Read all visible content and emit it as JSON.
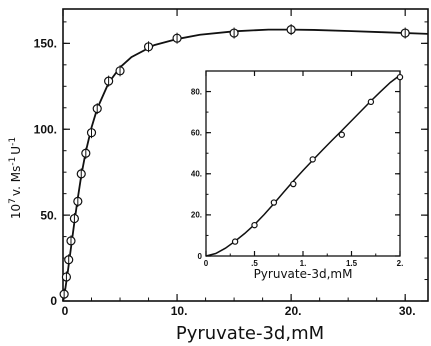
{
  "chart_data": [
    {
      "type": "scatter",
      "role": "main",
      "xlabel": "Pyruvate-3d,mM",
      "ylabel": "10⁷ v. Mₑ s⁻¹ U⁻¹",
      "ylabel_parts": {
        "exp": "7",
        "base": "10",
        "text": "v. Ms",
        "sup1": "-1",
        "tail": "U",
        "sup2": "-1"
      },
      "xlim": [
        0,
        32
      ],
      "ylim": [
        0,
        170
      ],
      "x_ticks": [
        0,
        10,
        20,
        30
      ],
      "x_tick_labels": [
        "0",
        "10.",
        "20.",
        "30."
      ],
      "y_ticks": [
        0,
        50,
        100,
        150
      ],
      "y_tick_labels": [
        "0",
        "50.",
        "100.",
        "150."
      ],
      "grid": false,
      "series": [
        {
          "marker": "open-circle",
          "x": [
            0.1,
            0.3,
            0.5,
            0.7,
            1.0,
            1.3,
            1.6,
            2.0,
            2.5,
            3.0,
            4.0,
            5.0,
            7.5,
            10.0,
            15.0,
            20.0,
            30.0
          ],
          "y": [
            4,
            14,
            24,
            35,
            48,
            58,
            74,
            86,
            98,
            112,
            128,
            134,
            148,
            153,
            156,
            158,
            156
          ]
        },
        {
          "marker": "line",
          "x": [
            0,
            0.2,
            0.4,
            0.6,
            0.8,
            1.0,
            1.3,
            1.6,
            2.0,
            2.5,
            3.0,
            4.0,
            5.0,
            6.0,
            8.0,
            10.0,
            12.0,
            15.0,
            18.0,
            20.0,
            22.0,
            25.0,
            28.0,
            32.0
          ],
          "y": [
            0,
            7,
            16,
            26,
            36,
            46,
            60,
            73,
            87,
            101,
            112,
            127,
            136,
            142,
            149,
            152.5,
            155,
            157,
            158,
            158,
            157.8,
            157.2,
            156.5,
            155.5
          ]
        }
      ]
    },
    {
      "type": "scatter",
      "role": "inset",
      "xlabel": "Pyruvate-3d,mM",
      "ylabel": "",
      "xlim": [
        0,
        2
      ],
      "ylim": [
        0,
        90
      ],
      "x_ticks": [
        0,
        0.5,
        1,
        1.5,
        2
      ],
      "x_tick_labels": [
        "0",
        ".5",
        "1.",
        "1.5",
        "2."
      ],
      "y_ticks": [
        0,
        20,
        40,
        60,
        80
      ],
      "y_tick_labels": [
        "0",
        "20.",
        "40.",
        "60.",
        "80."
      ],
      "grid": false,
      "series": [
        {
          "marker": "open-circle",
          "x": [
            0.3,
            0.5,
            0.7,
            0.9,
            1.1,
            1.4,
            1.7,
            2.0
          ],
          "y": [
            7,
            15,
            26,
            35,
            47,
            59,
            75,
            87
          ]
        },
        {
          "marker": "line",
          "x": [
            0,
            0.1,
            0.2,
            0.3,
            0.4,
            0.5,
            0.6,
            0.7,
            0.8,
            0.9,
            1.0,
            1.1,
            1.2,
            1.3,
            1.4,
            1.5,
            1.6,
            1.7,
            1.8,
            1.9,
            2.0
          ],
          "y": [
            0,
            1.2,
            3.8,
            7.2,
            11.0,
            15.3,
            20.2,
            25.5,
            31.0,
            36.4,
            41.6,
            46.6,
            51.5,
            56.3,
            61.0,
            65.8,
            70.6,
            75.4,
            80.0,
            84.4,
            88.0
          ]
        }
      ]
    }
  ]
}
